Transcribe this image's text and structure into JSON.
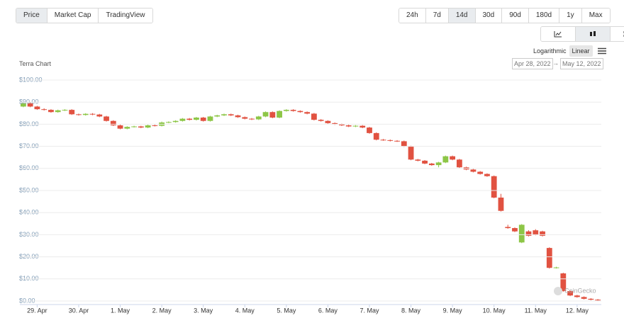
{
  "toolbar": {
    "data_tabs": [
      "Price",
      "Market Cap",
      "TradingView"
    ],
    "active_tab": "Price",
    "ranges": [
      "24h",
      "7d",
      "14d",
      "30d",
      "90d",
      "180d",
      "1y",
      "Max"
    ],
    "active_range": "14d",
    "scale_options": [
      "Logarithmic",
      "Linear"
    ],
    "active_scale": "Linear",
    "date_from": "Apr 28, 2022",
    "date_separator": "→",
    "date_to": "May 12, 2022"
  },
  "watermark": "CoinGecko",
  "chart_data": {
    "type": "candlestick",
    "title": "Terra Chart",
    "up_color": "#8dc647",
    "down_color": "#e15241",
    "grid": true,
    "log_scale": false,
    "categories": [
      null,
      null,
      "29. Apr",
      null,
      null,
      null,
      null,
      null,
      "30. Apr",
      null,
      null,
      null,
      null,
      null,
      "1. May",
      null,
      null,
      null,
      null,
      null,
      "2. May",
      null,
      null,
      null,
      null,
      null,
      "3. May",
      null,
      null,
      null,
      null,
      null,
      "4. May",
      null,
      null,
      null,
      null,
      null,
      "5. May",
      null,
      null,
      null,
      null,
      null,
      "6. May",
      null,
      null,
      null,
      null,
      null,
      "7. May",
      null,
      null,
      null,
      null,
      null,
      "8. May",
      null,
      null,
      null,
      null,
      null,
      "9. May",
      null,
      null,
      null,
      null,
      null,
      "10. May",
      null,
      null,
      null,
      null,
      null,
      "11. May",
      null,
      null,
      null,
      null,
      null,
      "12. May",
      null,
      null,
      null
    ],
    "open": [
      88,
      89.5,
      88,
      86.8,
      86.5,
      85.5,
      86.3,
      86.5,
      84.5,
      84.2,
      84.7,
      84.4,
      83.5,
      81.5,
      79.5,
      78,
      78.8,
      79,
      78.5,
      79.5,
      79.3,
      80.8,
      81,
      81.5,
      82.5,
      82,
      83,
      81.5,
      83.5,
      84,
      84.5,
      84,
      83.2,
      82.5,
      82.2,
      83.5,
      85.5,
      83,
      86,
      86.5,
      86,
      85.5,
      84.8,
      82,
      81.5,
      80.5,
      80,
      79.5,
      79,
      79.3,
      78.5,
      76,
      73,
      72.8,
      72.5,
      72.3,
      70,
      64,
      63.5,
      62.2,
      61.5,
      62.7,
      65.5,
      64,
      60.5,
      59.5,
      58.5,
      57.5,
      56.5,
      46.8,
      33.5,
      33,
      26.5,
      31.5,
      32,
      31.5,
      24,
      15,
      12.5,
      4.5,
      2.5,
      1.8,
      1,
      0.6
    ],
    "high": [
      90,
      90,
      88.3,
      87.2,
      86.8,
      86.6,
      86.8,
      86.8,
      84.8,
      85,
      85,
      84.7,
      83.8,
      81.8,
      79.8,
      79.1,
      79.3,
      79.3,
      79.8,
      79.8,
      81.2,
      81.3,
      81.8,
      82.8,
      82.8,
      83.3,
      83.3,
      83.8,
      84.3,
      84.8,
      84.8,
      84.3,
      83.5,
      82.8,
      83.8,
      85.8,
      85.8,
      86.3,
      86.8,
      86.8,
      86.3,
      85.8,
      85.1,
      82.3,
      81.8,
      80.8,
      80.3,
      79.8,
      79.6,
      79.6,
      78.8,
      76.3,
      73.3,
      73.1,
      72.8,
      72.6,
      70.3,
      64.3,
      63.8,
      62.5,
      63,
      65.8,
      65.8,
      64.3,
      60.8,
      59.8,
      58.8,
      57.8,
      56.8,
      48.5,
      34.5,
      33.3,
      34.8,
      32,
      32.5,
      31.8,
      24.3,
      15.5,
      12.8,
      4.8,
      2.8,
      2.1,
      1.3,
      0.9
    ],
    "low": [
      87.7,
      87.7,
      86.5,
      86.2,
      85.2,
      85.2,
      86,
      84.2,
      83.9,
      83.9,
      84.1,
      83.2,
      81.2,
      79.2,
      77.7,
      77.7,
      78.5,
      78.2,
      78.2,
      79,
      79,
      80.5,
      80.7,
      81.2,
      81.7,
      81.7,
      81.2,
      81.2,
      83.2,
      83.7,
      83.7,
      82.9,
      82.2,
      81.9,
      81.9,
      83.2,
      82.7,
      82.7,
      85.7,
      85.7,
      85.2,
      84.5,
      81.7,
      81.2,
      80.2,
      79.7,
      79.2,
      78.7,
      78.7,
      78.2,
      75.7,
      72.7,
      72.5,
      72.2,
      72,
      69.7,
      63.7,
      63.2,
      61.9,
      61.2,
      60.5,
      62.4,
      63.7,
      60.2,
      59.2,
      58.2,
      57.2,
      56.2,
      46.5,
      40.5,
      32.7,
      31.2,
      26.2,
      29.2,
      29.7,
      29.2,
      14.7,
      14.7,
      4.2,
      2.2,
      1.5,
      0.7,
      0.3,
      0.1
    ],
    "close": [
      89.5,
      88,
      86.8,
      86.5,
      85.5,
      86.3,
      86.5,
      84.5,
      84.2,
      84.7,
      84.4,
      83.5,
      81.5,
      79.5,
      78,
      78.8,
      79,
      78.5,
      79.5,
      79.3,
      80.8,
      81,
      81.5,
      82.5,
      82,
      83,
      81.5,
      83.5,
      84,
      84.5,
      84,
      83.2,
      82.5,
      82.2,
      83.5,
      85.5,
      83,
      86,
      86.5,
      86,
      85.5,
      84.8,
      82,
      81.5,
      80.5,
      80,
      79.5,
      79,
      79.3,
      78.5,
      76,
      73,
      72.8,
      72.5,
      72.3,
      70,
      64,
      63.5,
      62.2,
      61.5,
      62.7,
      65.5,
      64,
      60.5,
      59.5,
      58.5,
      57.5,
      56.5,
      46.8,
      40.8,
      33,
      31.5,
      34.5,
      29.5,
      30,
      29.5,
      15,
      15.2,
      4.5,
      2.5,
      1.8,
      1,
      0.6,
      0.3
    ],
    "ylim": [
      0,
      100
    ],
    "yticks": [
      {
        "value": 0,
        "label": "$0.00"
      },
      {
        "value": 10,
        "label": "$10.00"
      },
      {
        "value": 20,
        "label": "$20.00"
      },
      {
        "value": 30,
        "label": "$30.00"
      },
      {
        "value": 40,
        "label": "$40.00"
      },
      {
        "value": 50,
        "label": "$50.00"
      },
      {
        "value": 60,
        "label": "$60.00"
      },
      {
        "value": 70,
        "label": "$70.00"
      },
      {
        "value": 80,
        "label": "$80.00"
      },
      {
        "value": 90,
        "label": "$90.00"
      },
      {
        "value": 100,
        "label": "$100.00"
      }
    ]
  }
}
